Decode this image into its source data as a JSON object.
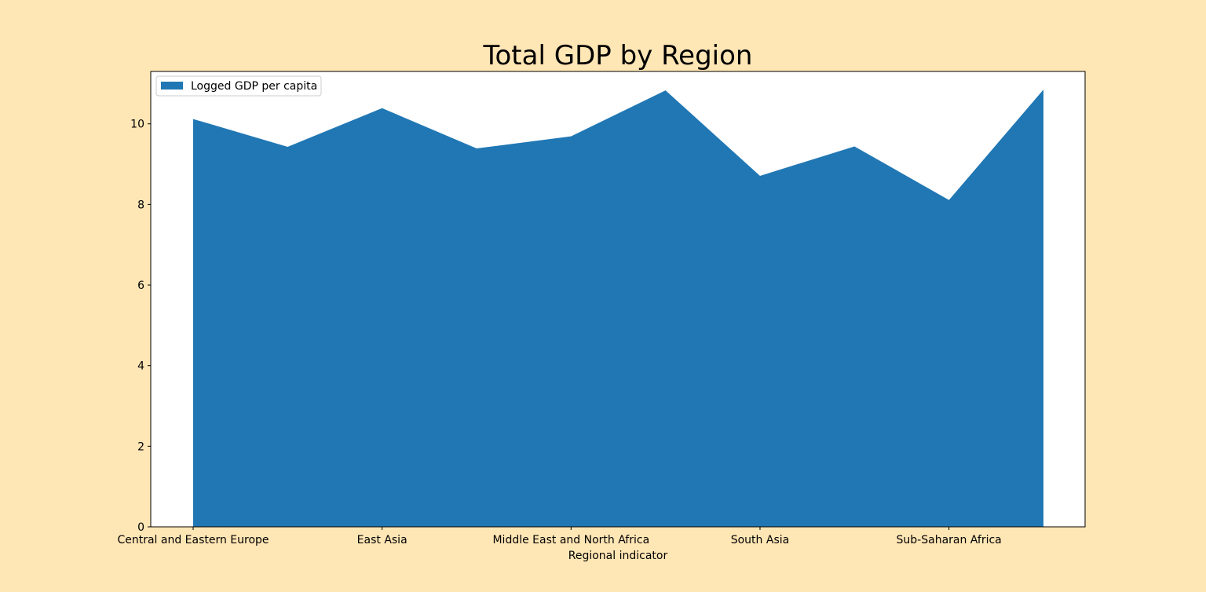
{
  "chart_data": {
    "type": "area",
    "title": "Total GDP by Region",
    "xlabel": "Regional indicator",
    "ylabel": "",
    "x_tick_labels": [
      "Central and Eastern Europe",
      "East Asia",
      "Middle East and North Africa",
      "South Asia",
      "Sub-Saharan Africa"
    ],
    "y_ticks": [
      0,
      2,
      4,
      6,
      8,
      10
    ],
    "ylim": [
      0,
      11.3
    ],
    "grid": false,
    "legend_position": "upper-left",
    "series": [
      {
        "name": "Logged GDP per capita",
        "color": "#2077b4",
        "values": [
          10.12,
          9.43,
          10.39,
          9.39,
          9.69,
          10.83,
          8.71,
          9.44,
          8.11,
          10.85
        ]
      }
    ]
  }
}
